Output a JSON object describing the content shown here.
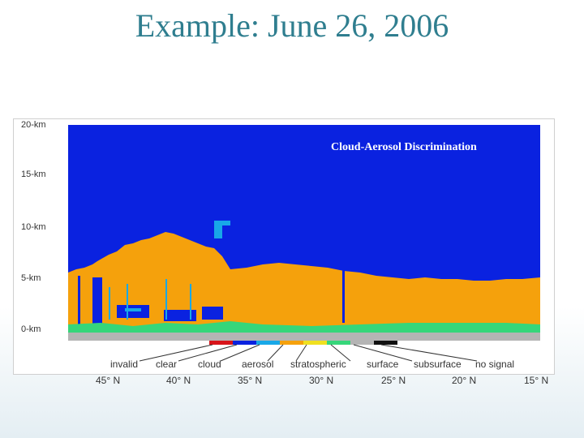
{
  "slide": {
    "title": "Example: June 26, 2006"
  },
  "plot": {
    "label": "Cloud-Aerosol Discrimination"
  },
  "y_axis": {
    "ticks": [
      "20-km",
      "15-km",
      "10-km",
      "5-km",
      "0-km"
    ]
  },
  "legend": {
    "items": [
      {
        "label": "invalid",
        "color": "#d8141a"
      },
      {
        "label": "clear",
        "color": "#0a22e0"
      },
      {
        "label": "cloud",
        "color": "#18a8e8"
      },
      {
        "label": "aerosol",
        "color": "#f5a10c"
      },
      {
        "label": "stratospheric",
        "color": "#f0e020"
      },
      {
        "label": "surface",
        "color": "#36d67a"
      },
      {
        "label": "subsurface",
        "color": "#b4b4b4"
      },
      {
        "label": "no signal",
        "color": "#111111"
      }
    ]
  },
  "x_axis": {
    "latitudes": [
      "45° N",
      "40° N",
      "35° N",
      "30° N",
      "25° N",
      "20° N",
      "15° N"
    ]
  }
}
